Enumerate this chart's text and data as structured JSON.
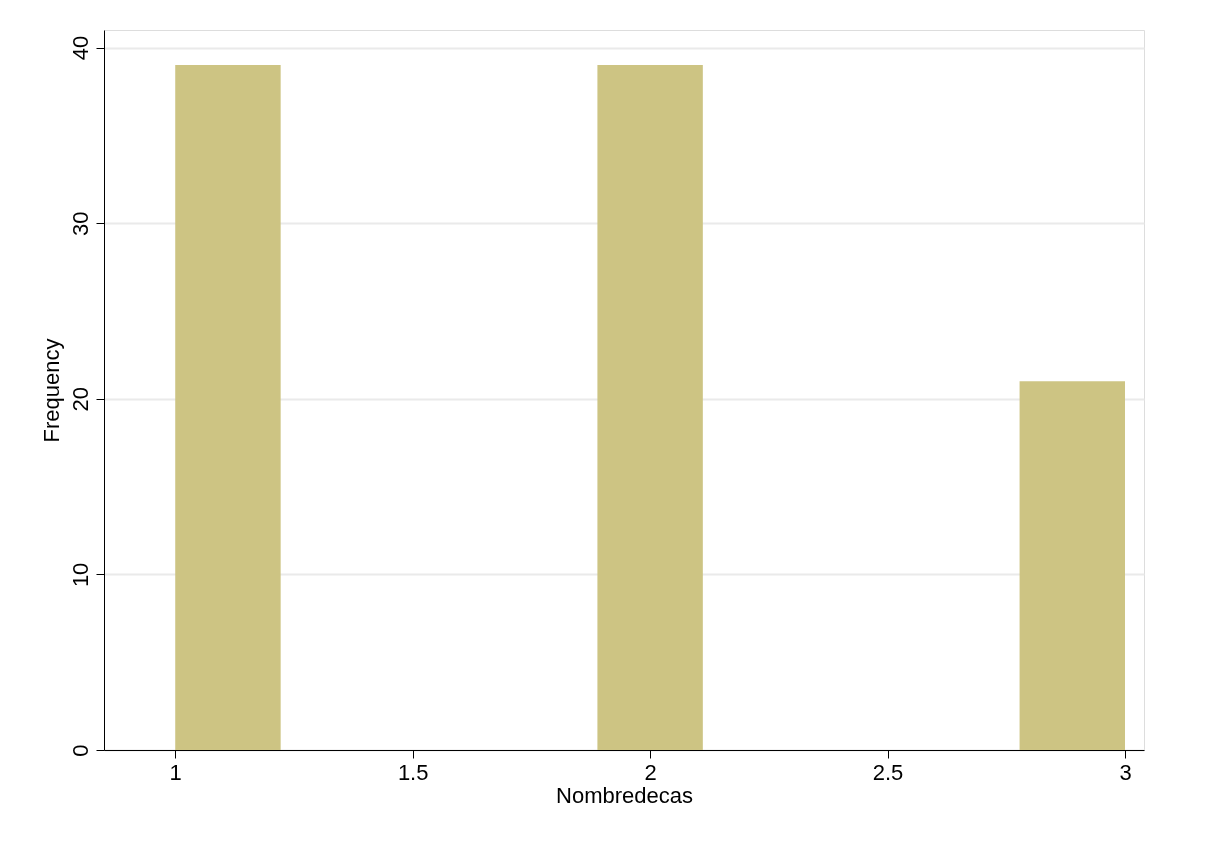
{
  "chart_data": {
    "type": "histogram",
    "xlabel": "Nombredecas",
    "ylabel": "Frequency",
    "bins": [
      1,
      1.222,
      1.444,
      1.667,
      1.889,
      2.111,
      2.333,
      2.556,
      2.778,
      3
    ],
    "values": [
      39,
      0,
      0,
      0,
      39,
      0,
      0,
      0,
      21
    ],
    "color": "#cdc483",
    "xlim": [
      0.85,
      3.04
    ],
    "xticks": [
      1,
      1.5,
      2,
      2.5,
      3
    ],
    "ylim": [
      0,
      41
    ],
    "yticks": [
      0,
      10,
      20,
      30,
      40
    ],
    "grid": "y"
  }
}
